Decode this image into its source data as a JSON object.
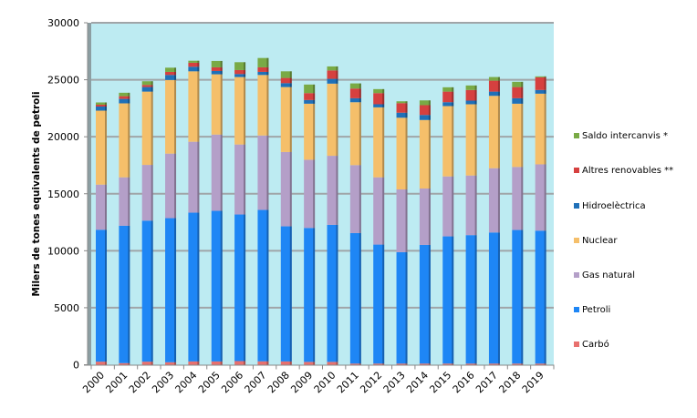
{
  "chart_data": {
    "type": "bar",
    "stacked": true,
    "title": "",
    "xlabel": "",
    "ylabel": "Milers de tones equivalents de petroli",
    "ylim": [
      0,
      30000
    ],
    "yticks": [
      0,
      5000,
      10000,
      15000,
      20000,
      25000,
      30000
    ],
    "ytick_labels": [
      "0",
      "5000",
      "10000",
      "15000",
      "20000",
      "25000",
      "30000"
    ],
    "grid": true,
    "legend_position": "right",
    "background_color": "#bdebf2",
    "categories": [
      "2000",
      "2001",
      "2002",
      "2003",
      "2004",
      "2005",
      "2006",
      "2007",
      "2008",
      "2009",
      "2010",
      "2011",
      "2012",
      "2013",
      "2014",
      "2015",
      "2016",
      "2017",
      "2018",
      "2019"
    ],
    "series": [
      {
        "name": "Carbó",
        "color": "#e8706e",
        "values": [
          270,
          140,
          270,
          220,
          290,
          290,
          320,
          300,
          290,
          250,
          250,
          100,
          100,
          100,
          100,
          100,
          100,
          100,
          100,
          100
        ]
      },
      {
        "name": "Petroli",
        "color": "#1e86f5",
        "values": [
          11570,
          12050,
          12370,
          12640,
          13050,
          13210,
          12860,
          13280,
          11850,
          11750,
          12020,
          11450,
          10440,
          9770,
          10410,
          11160,
          11270,
          11500,
          11720,
          11660
        ]
      },
      {
        "name": "Gas natural",
        "color": "#b49fc8",
        "values": [
          3960,
          4250,
          4890,
          5660,
          6220,
          6690,
          6140,
          6530,
          6520,
          5980,
          6060,
          5960,
          5900,
          5510,
          4950,
          5260,
          5230,
          5640,
          5530,
          5820
        ]
      },
      {
        "name": "Nuclear",
        "color": "#f5bf6a",
        "values": [
          6490,
          6490,
          6430,
          6460,
          6180,
          5290,
          5920,
          5310,
          5700,
          4920,
          6330,
          5520,
          6140,
          6290,
          6010,
          6170,
          6250,
          6350,
          5550,
          6200
        ]
      },
      {
        "name": "Hidroelèctrica",
        "color": "#1f70b8",
        "values": [
          360,
          390,
          400,
          440,
          400,
          290,
          260,
          270,
          340,
          320,
          420,
          350,
          270,
          440,
          440,
          340,
          320,
          370,
          480,
          320
        ]
      },
      {
        "name": "Altres renovables **",
        "color": "#d6403f",
        "values": [
          160,
          240,
          190,
          270,
          350,
          320,
          350,
          400,
          460,
          610,
          740,
          850,
          980,
          840,
          860,
          930,
          930,
          960,
          980,
          1120
        ]
      },
      {
        "name": "Saldo intercanvis *",
        "color": "#79aa45",
        "values": [
          200,
          300,
          320,
          370,
          180,
          560,
          690,
          820,
          580,
          750,
          350,
          450,
          350,
          160,
          420,
          380,
          400,
          320,
          460,
          80
        ]
      }
    ]
  }
}
